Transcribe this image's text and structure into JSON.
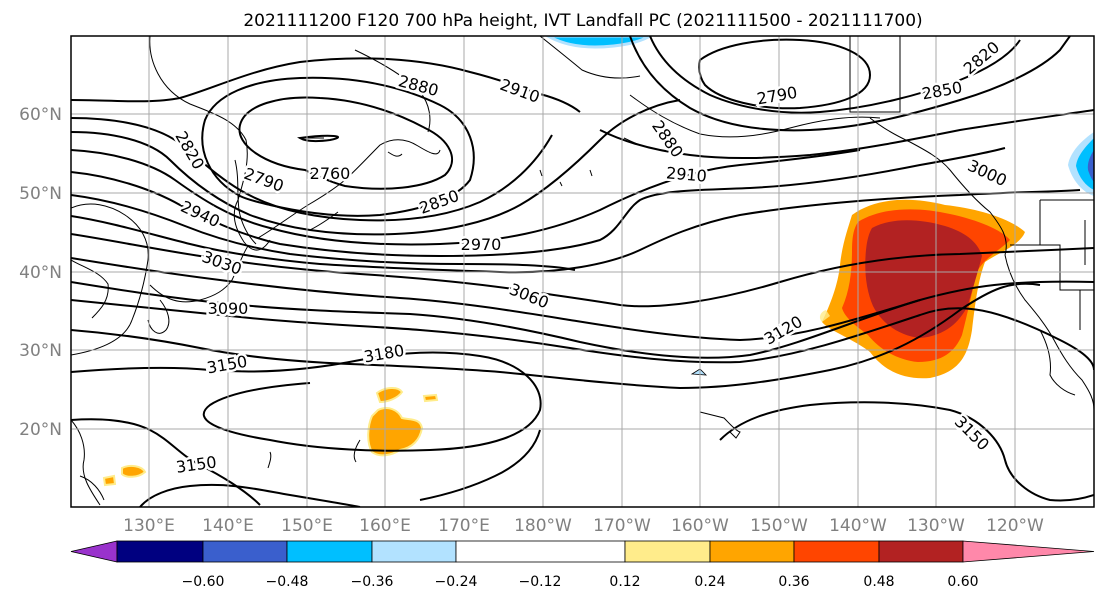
{
  "title": "2021111200 F120 700 hPa height, IVT Landfall PC (2021111500 - 2021111700)",
  "lat_labels": [
    "60°N",
    "50°N",
    "40°N",
    "30°N",
    "20°N"
  ],
  "lon_labels": [
    "130°E",
    "140°E",
    "150°E",
    "160°E",
    "170°E",
    "180°W",
    "170°W",
    "160°W",
    "150°W",
    "140°W",
    "130°W",
    "120°W"
  ],
  "colorbar": {
    "ticks": [
      "−0.60",
      "−0.48",
      "−0.36",
      "−0.24",
      "−0.12",
      "0.12",
      "0.24",
      "0.36",
      "0.48",
      "0.60"
    ],
    "colors": {
      "under": "#9932cc",
      "bins": [
        "#000080",
        "#3a5fcd",
        "#00bfff",
        "#b2e2ff",
        "#ffffff",
        "#ffec8b",
        "#ffa500",
        "#ff4500",
        "#b22222"
      ],
      "over": "#ff88aa"
    }
  },
  "contour_labels": [
    "2880",
    "2910",
    "2790",
    "2820",
    "2850",
    "2820",
    "2790",
    "2760",
    "2850",
    "2880",
    "2910",
    "3000",
    "2940",
    "2970",
    "3030",
    "3060",
    "3090",
    "3120",
    "3150",
    "3180",
    "3150",
    "3150"
  ]
}
